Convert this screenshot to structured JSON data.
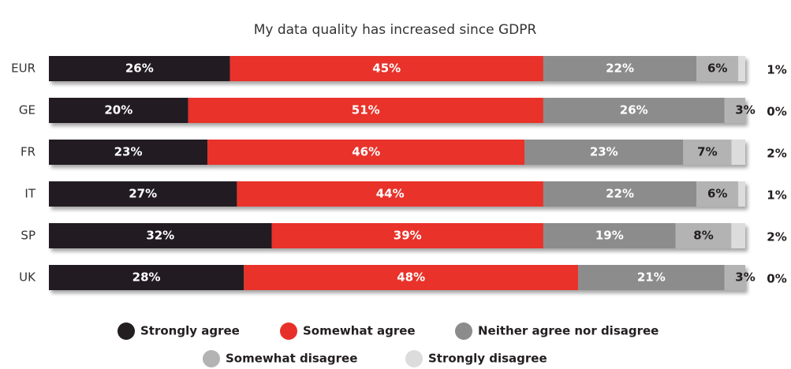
{
  "chart_data": {
    "type": "stacked-bar-horizontal",
    "title": "My data quality has increased since GDPR",
    "categories": [
      "EUR",
      "GE",
      "FR",
      "IT",
      "SP",
      "UK"
    ],
    "series": [
      {
        "name": "Strongly agree",
        "color": "#231f20",
        "values": [
          26,
          20,
          23,
          27,
          32,
          28
        ],
        "value_labels": [
          "26%",
          "20%",
          "23%",
          "27%",
          "32%",
          "28%"
        ]
      },
      {
        "name": "Somewhat agree",
        "color": "#e8302a",
        "values": [
          45,
          51,
          46,
          44,
          39,
          48
        ],
        "value_labels": [
          "45%",
          "51%",
          "46%",
          "44%",
          "39%",
          "48%"
        ]
      },
      {
        "name": "Neither agree nor disagree",
        "color": "#8c8c8c",
        "values": [
          22,
          26,
          23,
          22,
          19,
          21
        ],
        "value_labels": [
          "22%",
          "26%",
          "23%",
          "22%",
          "19%",
          "21%"
        ]
      },
      {
        "name": "Somewhat disagree",
        "color": "#b3b3b3",
        "values": [
          6,
          3,
          7,
          6,
          8,
          3
        ],
        "value_labels": [
          "6%",
          "3%",
          "7%",
          "6%",
          "8%",
          "3%"
        ]
      },
      {
        "name": "Strongly disagree",
        "color": "#dcdcdc",
        "values": [
          1,
          0,
          2,
          1,
          2,
          0
        ],
        "value_labels": [
          "1%",
          "0%",
          "2%",
          "1%",
          "2%",
          "0%"
        ]
      }
    ]
  }
}
